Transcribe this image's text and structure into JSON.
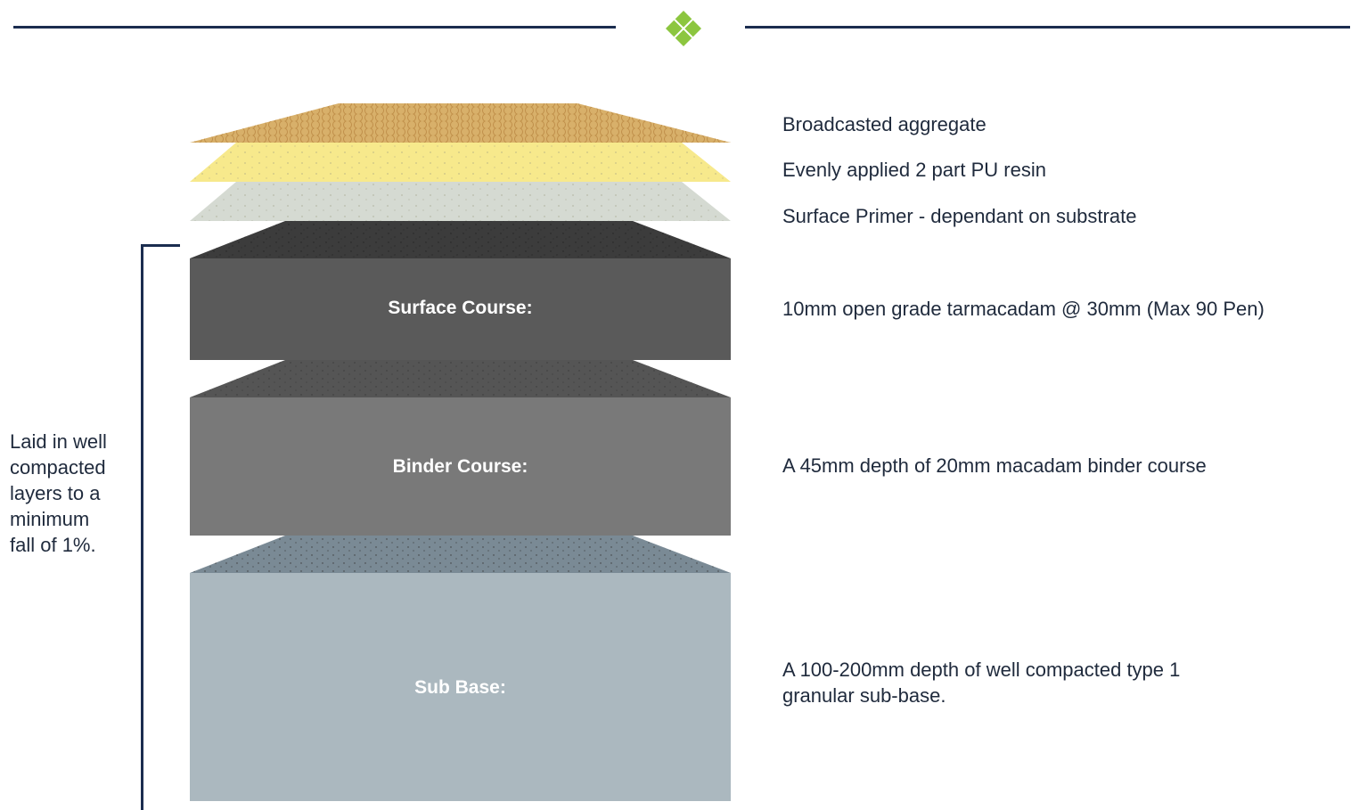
{
  "header": {
    "accent_color": "#8cc63f",
    "line_color": "#1b2d4f"
  },
  "layers": {
    "surface_course": {
      "name": "Surface Course:",
      "description": "10mm open grade tarmacadam @ 30mm (Max 90 Pen)",
      "color": "#5a5a5a"
    },
    "binder_course": {
      "name": "Binder Course:",
      "description": "A 45mm depth of 20mm macadam binder course",
      "color": "#797979"
    },
    "sub_base": {
      "name": "Sub Base:",
      "description_line1": "A 100-200mm depth of well compacted type 1",
      "description_line2": "granular sub-base.",
      "color": "#abb8bf"
    }
  },
  "top_layers": {
    "aggregate": {
      "description": "Broadcasted aggregate",
      "color": "#d8b06a"
    },
    "resin": {
      "description": "Evenly applied 2 part PU resin",
      "color": "#f7e98c"
    },
    "primer": {
      "description": "Surface Primer - dependant on substrate",
      "color": "#d5dad2"
    }
  },
  "side_note": {
    "lines": [
      "Laid in well",
      "compacted",
      "layers to a",
      "minimum",
      "fall of 1%."
    ]
  }
}
